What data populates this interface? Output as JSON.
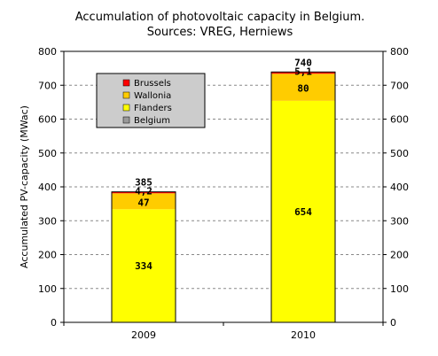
{
  "chart_data": {
    "type": "bar",
    "stacked": true,
    "title": [
      "Accumulation of photovoltaic capacity in Belgium.",
      "Sources: VREG, Herniews"
    ],
    "ylabel": "Accumulated PV-capacity (MWac)",
    "xlabel": "",
    "ylim": [
      0,
      800
    ],
    "yticks": [
      "0",
      "100",
      "200",
      "300",
      "400",
      "500",
      "600",
      "700",
      "800"
    ],
    "categories": [
      "2009",
      "2010"
    ],
    "series": [
      {
        "name": "Flanders",
        "values": [
          334,
          654
        ],
        "labels": [
          "334",
          "654"
        ],
        "color": "#ffff00"
      },
      {
        "name": "Wallonia",
        "values": [
          47,
          80
        ],
        "labels": [
          "47",
          "80"
        ],
        "color": "#ffcc00"
      },
      {
        "name": "Brussels",
        "values": [
          4.2,
          5.1
        ],
        "labels": [
          "4,2",
          "5,1"
        ],
        "color": "#ff0000"
      }
    ],
    "totals": [
      "385",
      "740"
    ],
    "legend": [
      {
        "name": "Brussels",
        "color": "#ff0000"
      },
      {
        "name": "Wallonia",
        "color": "#ffcc00"
      },
      {
        "name": "Flanders",
        "color": "#ffff00"
      },
      {
        "name": "Belgium",
        "color": "#999999"
      }
    ],
    "legend_position": "top-left",
    "grid": true,
    "colors": {
      "grid": "#888888",
      "legend_bg": "#cccccc",
      "border": "#000000"
    }
  }
}
